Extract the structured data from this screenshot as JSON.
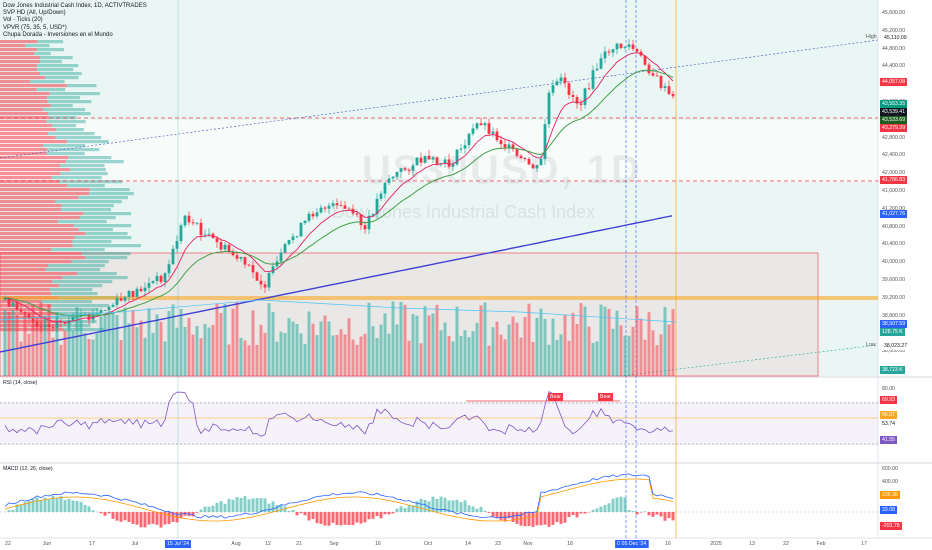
{
  "legend": {
    "symbol_line": "Dow Jones Industrial Cash Index, 1D, ACTIVTRADES",
    "indicators": [
      "SVP HD (All, Up/Down)",
      "Vol · Ticks (20)",
      "VPVR (75, 35, 5, USD*)",
      "Chupa Dorada - Inversiones en el Mundo"
    ]
  },
  "watermark": {
    "ticker": "US30USD, 1D",
    "name": "Dow Jones Industrial Cash Index"
  },
  "price_axis": {
    "ticks": [
      "45,600.00",
      "45,200.00",
      "44,800.00",
      "44,400.00",
      "44,000.00",
      "43,600.00",
      "43,200.00",
      "42,800.00",
      "42,400.00",
      "42,000.00",
      "41,600.00",
      "41,200.00",
      "40,800.00",
      "40,400.00",
      "40,000.00",
      "39,600.00",
      "39,200.00",
      "38,800.00",
      "38,400.00",
      "38,000.00",
      "37,600.00"
    ],
    "high_label": "High",
    "high_value": "45,110.09",
    "low_label": "Low",
    "low_value": "38,023.27",
    "tags": [
      {
        "value": "44,057.08",
        "color": "#f23645"
      },
      {
        "value": "43,553.35",
        "color": "#089981"
      },
      {
        "value": "43,539.41",
        "color": "#131722"
      },
      {
        "value": "43,533.69",
        "color": "#1b5e20"
      },
      {
        "value": "43,279.39",
        "color": "#f23645"
      },
      {
        "value": "41,786.83",
        "color": "#f23645"
      },
      {
        "value": "41,027.76",
        "color": "#2962ff"
      },
      {
        "value": "38,507.59",
        "color": "#2962ff"
      },
      {
        "value": "128.75 K",
        "color": "#26a69a"
      },
      {
        "value": "38,723 K",
        "color": "#26a69a"
      }
    ]
  },
  "rsi": {
    "label": "RSI (14, close)",
    "ticks": [
      "80.00",
      "20.00"
    ],
    "tags": [
      {
        "value": "69.93",
        "color": "#f23645"
      },
      {
        "value": "56.07",
        "color": "#f9a825"
      },
      {
        "value": "53.74",
        "color": "#ffffff"
      },
      {
        "value": "41.55",
        "color": "#7e57c2"
      }
    ],
    "bear_label": "Bear"
  },
  "macd": {
    "label": "MACD (12, 26, close)",
    "ticks": [
      "600.00",
      "400.00",
      "200.00"
    ],
    "tags": [
      {
        "value": "236.36",
        "color": "#ff9800"
      },
      {
        "value": "33.08",
        "color": "#2962ff"
      },
      {
        "value": "-203.78",
        "color": "#f23645"
      }
    ]
  },
  "time_axis": {
    "labels": [
      "22",
      "Jun",
      "17",
      "Jul",
      "Aug",
      "12",
      "21",
      "Sep",
      "16",
      "Oct",
      "14",
      "23",
      "Nov",
      "18",
      "16",
      "2025",
      "13",
      "22",
      "Feb",
      "17"
    ],
    "highlights": [
      "15 Jul '24",
      "03",
      "05 Dec '24"
    ]
  },
  "colors": {
    "up": "#26a69a",
    "down": "#f23645",
    "ema_pink": "#e91e63",
    "ema_green": "#43a047",
    "ema_blue": "#3f3fd8",
    "orange_line": "#f9a825"
  }
}
